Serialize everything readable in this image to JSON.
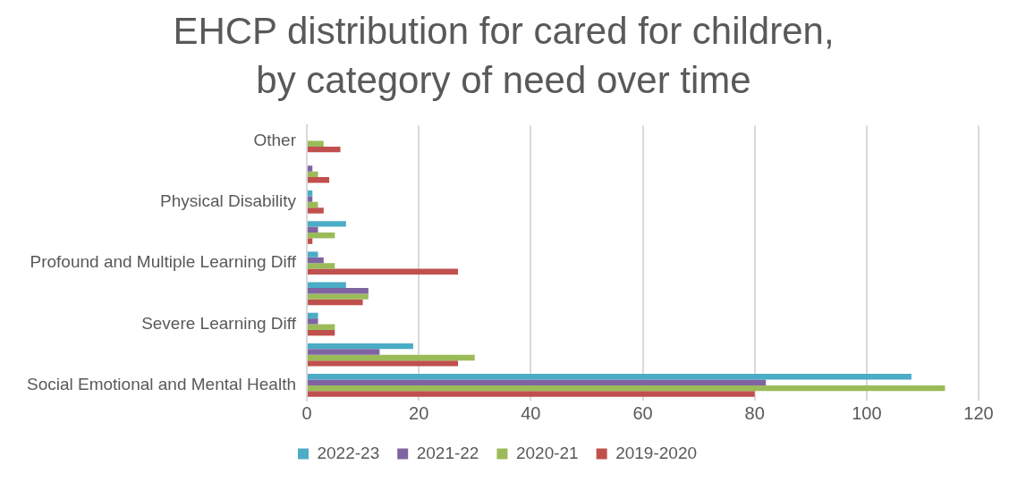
{
  "chart_data": {
    "type": "bar",
    "orientation": "horizontal",
    "title": "EHCP distribution for cared for children, by category of need over time",
    "categories": [
      "Other",
      null,
      "Physical Disability",
      null,
      "Profound and Multiple Learning Diff",
      null,
      "Severe Learning Diff",
      null,
      "Social Emotional and Mental Health"
    ],
    "series": [
      {
        "name": "2022-23",
        "color": "#4bacc6",
        "values": [
          0,
          0,
          1,
          7,
          2,
          7,
          2,
          19,
          108
        ]
      },
      {
        "name": "2021-22",
        "color": "#8064a2",
        "values": [
          0,
          1,
          1,
          2,
          3,
          11,
          2,
          13,
          82
        ]
      },
      {
        "name": "2020-21",
        "color": "#9bbb59",
        "values": [
          3,
          2,
          2,
          5,
          5,
          11,
          5,
          30,
          114
        ]
      },
      {
        "name": "2019-2020",
        "color": "#c0504d",
        "values": [
          6,
          4,
          3,
          1,
          27,
          10,
          5,
          27,
          80
        ]
      }
    ],
    "xlim": [
      0,
      120
    ],
    "xticks": [
      0,
      20,
      40,
      60,
      80,
      100,
      120
    ],
    "grid": "x",
    "legend": "bottom"
  }
}
